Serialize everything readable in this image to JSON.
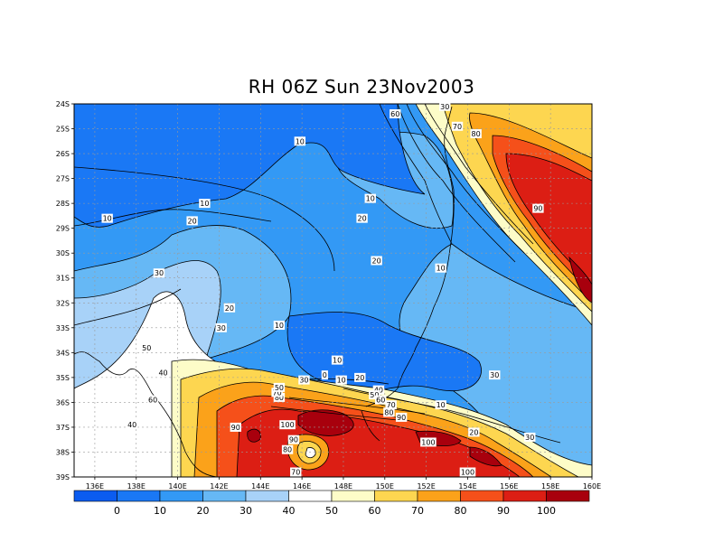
{
  "title": "RH 06Z Sun 23Nov2003",
  "colors": {
    "band_lt0": "#0b5cf0",
    "band_0_10": "#1a78f5",
    "band_10_20": "#3399f5",
    "band_20_30": "#66b8f5",
    "band_30_40": "#a8d2f8",
    "band_40_50": "#ffffff",
    "band_50_60": "#fdfcc8",
    "band_60_70": "#fdd650",
    "band_70_80": "#fba21a",
    "band_80_90": "#f5501a",
    "band_90_100": "#dc1e14",
    "band_gt100": "#a8000d",
    "contour_line": "#000000",
    "grid_line": "#9a9a9a"
  },
  "map": {
    "lon_labels": [
      "136E",
      "138E",
      "140E",
      "142E",
      "144E",
      "146E",
      "148E",
      "150E",
      "152E",
      "154E",
      "156E",
      "158E",
      "160E"
    ],
    "lat_labels": [
      "24S",
      "25S",
      "26S",
      "27S",
      "28S",
      "29S",
      "30S",
      "31S",
      "32S",
      "33S",
      "34S",
      "35S",
      "36S",
      "37S",
      "38S",
      "39S"
    ],
    "contour_labels": [
      {
        "text": "10",
        "lon": 136.6,
        "lat": -28.6
      },
      {
        "text": "10",
        "lon": 141.3,
        "lat": -28.0
      },
      {
        "text": "20",
        "lon": 140.7,
        "lat": -28.7
      },
      {
        "text": "30",
        "lon": 139.1,
        "lat": -30.8
      },
      {
        "text": "20",
        "lon": 142.5,
        "lat": -32.2
      },
      {
        "text": "30",
        "lon": 142.1,
        "lat": -33.0
      },
      {
        "text": "10",
        "lon": 144.9,
        "lat": -32.9
      },
      {
        "text": "50",
        "lon": 138.5,
        "lat": -33.8
      },
      {
        "text": "40",
        "lon": 139.3,
        "lat": -34.8
      },
      {
        "text": "60",
        "lon": 138.8,
        "lat": -35.9
      },
      {
        "text": "90",
        "lon": 142.8,
        "lat": -37.0
      },
      {
        "text": "100",
        "lon": 145.3,
        "lat": -36.9
      },
      {
        "text": "90",
        "lon": 145.6,
        "lat": -37.5
      },
      {
        "text": "80",
        "lon": 145.3,
        "lat": -37.9
      },
      {
        "text": "70",
        "lon": 145.7,
        "lat": -38.8
      },
      {
        "text": "80",
        "lon": 144.9,
        "lat": -35.8
      },
      {
        "text": "70",
        "lon": 144.8,
        "lat": -35.6
      },
      {
        "text": "50",
        "lon": 144.9,
        "lat": -35.4
      },
      {
        "text": "30",
        "lon": 146.1,
        "lat": -35.1
      },
      {
        "text": "0",
        "lon": 147.1,
        "lat": -34.9
      },
      {
        "text": "10",
        "lon": 147.9,
        "lat": -35.1
      },
      {
        "text": "20",
        "lon": 148.8,
        "lat": -35.0
      },
      {
        "text": "10",
        "lon": 147.7,
        "lat": -34.3
      },
      {
        "text": "10",
        "lon": 145.9,
        "lat": -25.5
      },
      {
        "text": "10",
        "lon": 149.3,
        "lat": -27.8
      },
      {
        "text": "20",
        "lon": 148.9,
        "lat": -28.6
      },
      {
        "text": "20",
        "lon": 149.6,
        "lat": -30.3
      },
      {
        "text": "10",
        "lon": 152.7,
        "lat": -30.6
      },
      {
        "text": "60",
        "lon": 150.5,
        "lat": -24.4
      },
      {
        "text": "70",
        "lon": 153.5,
        "lat": -24.9
      },
      {
        "text": "80",
        "lon": 154.4,
        "lat": -25.2
      },
      {
        "text": "90",
        "lon": 157.4,
        "lat": -28.2
      },
      {
        "text": "40",
        "lon": 149.7,
        "lat": -35.5
      },
      {
        "text": "50",
        "lon": 149.5,
        "lat": -35.7
      },
      {
        "text": "60",
        "lon": 149.8,
        "lat": -35.9
      },
      {
        "text": "70",
        "lon": 150.3,
        "lat": -36.1
      },
      {
        "text": "80",
        "lon": 150.2,
        "lat": -36.4
      },
      {
        "text": "90",
        "lon": 150.8,
        "lat": -36.6
      },
      {
        "text": "10",
        "lon": 152.7,
        "lat": -36.1
      },
      {
        "text": "20",
        "lon": 154.3,
        "lat": -37.2
      },
      {
        "text": "30",
        "lon": 157.0,
        "lat": -37.4
      },
      {
        "text": "30",
        "lon": 155.3,
        "lat": -34.9
      },
      {
        "text": "100",
        "lon": 152.1,
        "lat": -37.6
      },
      {
        "text": "100",
        "lon": 154.0,
        "lat": -38.8
      },
      {
        "text": "40",
        "lon": 137.8,
        "lat": -36.9
      },
      {
        "text": "30",
        "lon": 152.9,
        "lat": -24.1
      }
    ]
  },
  "colorbar": {
    "labels": [
      "0",
      "10",
      "20",
      "30",
      "40",
      "50",
      "60",
      "70",
      "80",
      "90",
      "100"
    ]
  }
}
